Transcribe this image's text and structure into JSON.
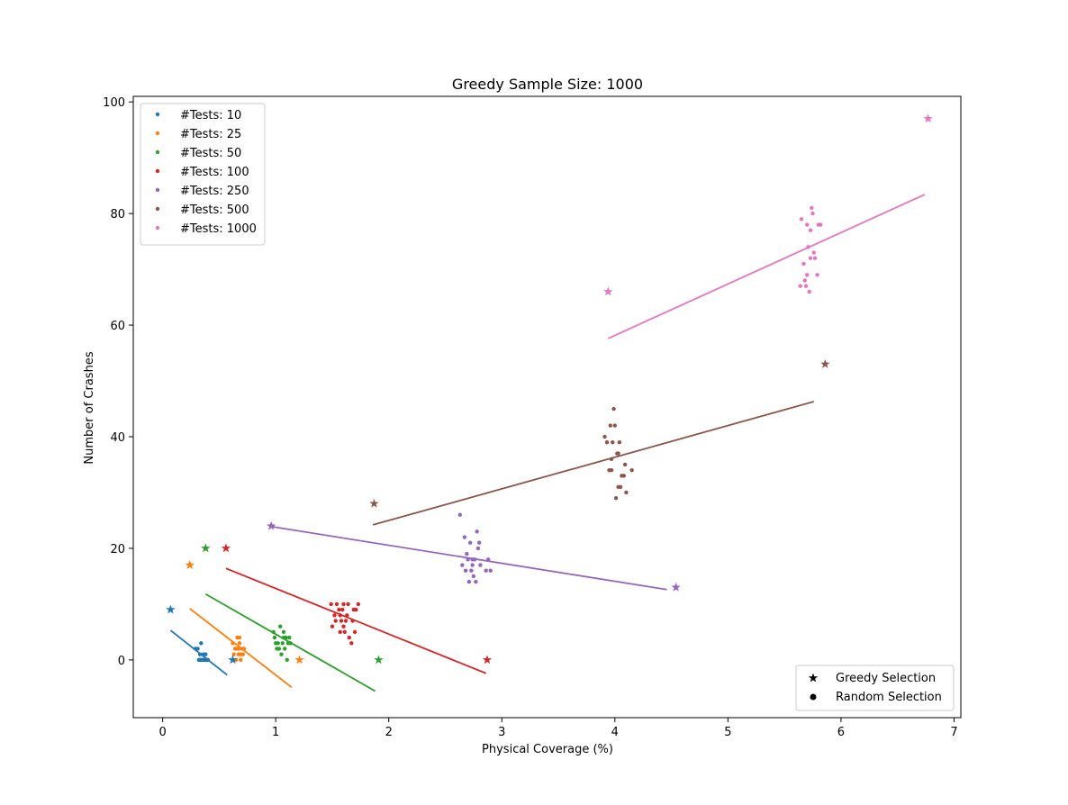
{
  "chart_data": {
    "type": "scatter",
    "title": "Greedy Sample Size: 1000",
    "xlabel": "Physical Coverage (%)",
    "ylabel": "Number of Crashes",
    "xlim": [
      -0.26,
      7.06
    ],
    "ylim": [
      -10.35,
      101.0
    ],
    "xticks": [
      0,
      1,
      2,
      3,
      4,
      5,
      6,
      7
    ],
    "yticks": [
      0,
      20,
      40,
      60,
      80,
      100
    ],
    "grid": false,
    "legend_placement": "upper left",
    "marker_legend_placement": "lower right",
    "marker_legend": [
      "Greedy Selection",
      "Random Selection"
    ],
    "series": [
      {
        "name": "#Tests: 10",
        "color": "#1f77b4",
        "greedy": [
          [
            0.07,
            9
          ],
          [
            0.62,
            0
          ]
        ],
        "random": [
          [
            0.29,
            2
          ],
          [
            0.31,
            2
          ],
          [
            0.32,
            0
          ],
          [
            0.33,
            1
          ],
          [
            0.34,
            3
          ],
          [
            0.34,
            0
          ],
          [
            0.35,
            0
          ],
          [
            0.36,
            1
          ],
          [
            0.37,
            0
          ],
          [
            0.38,
            1
          ],
          [
            0.39,
            0
          ],
          [
            0.4,
            0
          ],
          [
            0.33,
            0
          ],
          [
            0.36,
            0
          ],
          [
            0.38,
            0
          ]
        ],
        "fit": [
          [
            0.07,
            5.3
          ],
          [
            0.57,
            -2.7
          ]
        ]
      },
      {
        "name": "#Tests: 25",
        "color": "#ff7f0e",
        "greedy": [
          [
            0.24,
            17
          ],
          [
            1.21,
            0
          ]
        ],
        "random": [
          [
            0.62,
            3
          ],
          [
            0.63,
            1
          ],
          [
            0.64,
            2
          ],
          [
            0.65,
            0
          ],
          [
            0.66,
            4
          ],
          [
            0.67,
            2
          ],
          [
            0.67,
            1
          ],
          [
            0.68,
            3
          ],
          [
            0.69,
            1
          ],
          [
            0.69,
            0
          ],
          [
            0.7,
            2
          ],
          [
            0.71,
            1
          ],
          [
            0.72,
            2
          ],
          [
            0.66,
            2
          ],
          [
            0.68,
            4
          ]
        ],
        "fit": [
          [
            0.24,
            9.2
          ],
          [
            1.14,
            -4.9
          ]
        ]
      },
      {
        "name": "#Tests: 50",
        "color": "#2ca02c",
        "greedy": [
          [
            0.38,
            20
          ],
          [
            1.91,
            0
          ]
        ],
        "random": [
          [
            0.98,
            5
          ],
          [
            0.99,
            4
          ],
          [
            1.0,
            3
          ],
          [
            1.01,
            2
          ],
          [
            1.02,
            3
          ],
          [
            1.03,
            2
          ],
          [
            1.04,
            6
          ],
          [
            1.05,
            1
          ],
          [
            1.06,
            3
          ],
          [
            1.07,
            5
          ],
          [
            1.08,
            2
          ],
          [
            1.09,
            4
          ],
          [
            1.1,
            0
          ],
          [
            1.11,
            3
          ],
          [
            1.12,
            4
          ],
          [
            1.13,
            3
          ],
          [
            1.07,
            4
          ]
        ],
        "fit": [
          [
            0.38,
            11.8
          ],
          [
            1.88,
            -5.6
          ]
        ]
      },
      {
        "name": "#Tests: 100",
        "color": "#d62728",
        "greedy": [
          [
            0.56,
            20
          ],
          [
            2.87,
            0
          ]
        ],
        "random": [
          [
            1.49,
            10
          ],
          [
            1.5,
            6
          ],
          [
            1.52,
            8
          ],
          [
            1.53,
            7
          ],
          [
            1.54,
            10
          ],
          [
            1.56,
            9
          ],
          [
            1.57,
            5
          ],
          [
            1.58,
            7
          ],
          [
            1.59,
            9
          ],
          [
            1.6,
            10
          ],
          [
            1.61,
            5
          ],
          [
            1.62,
            7
          ],
          [
            1.63,
            8
          ],
          [
            1.64,
            10
          ],
          [
            1.65,
            4
          ],
          [
            1.67,
            3
          ],
          [
            1.68,
            7
          ],
          [
            1.69,
            9
          ],
          [
            1.7,
            5
          ],
          [
            1.71,
            9
          ],
          [
            1.73,
            10
          ],
          [
            1.6,
            6
          ],
          [
            1.57,
            8
          ]
        ],
        "fit": [
          [
            0.56,
            16.4
          ],
          [
            2.86,
            -2.4
          ]
        ]
      },
      {
        "name": "#Tests: 250",
        "color": "#9467bd",
        "greedy": [
          [
            0.96,
            24
          ],
          [
            4.54,
            13
          ]
        ],
        "random": [
          [
            2.63,
            26
          ],
          [
            2.65,
            17
          ],
          [
            2.67,
            22
          ],
          [
            2.68,
            16
          ],
          [
            2.69,
            19
          ],
          [
            2.7,
            18
          ],
          [
            2.71,
            14
          ],
          [
            2.72,
            21
          ],
          [
            2.73,
            16
          ],
          [
            2.74,
            17
          ],
          [
            2.75,
            15
          ],
          [
            2.76,
            18
          ],
          [
            2.77,
            14
          ],
          [
            2.78,
            23
          ],
          [
            2.79,
            20
          ],
          [
            2.8,
            21
          ],
          [
            2.81,
            17
          ],
          [
            2.86,
            16
          ],
          [
            2.88,
            18
          ],
          [
            2.9,
            16
          ],
          [
            2.74,
            18
          ]
        ],
        "fit": [
          [
            0.96,
            23.9
          ],
          [
            4.46,
            12.6
          ]
        ]
      },
      {
        "name": "#Tests: 500",
        "color": "#8c564b",
        "greedy": [
          [
            1.87,
            28
          ],
          [
            5.86,
            53
          ]
        ],
        "random": [
          [
            3.91,
            40
          ],
          [
            3.93,
            39
          ],
          [
            3.95,
            34
          ],
          [
            3.96,
            42
          ],
          [
            3.97,
            36
          ],
          [
            3.98,
            39
          ],
          [
            3.99,
            45
          ],
          [
            4.0,
            42
          ],
          [
            4.01,
            29
          ],
          [
            4.02,
            37
          ],
          [
            4.03,
            31
          ],
          [
            4.04,
            39
          ],
          [
            4.05,
            31
          ],
          [
            4.06,
            33
          ],
          [
            4.08,
            33
          ],
          [
            4.09,
            35
          ],
          [
            4.1,
            30
          ],
          [
            4.15,
            34
          ],
          [
            3.97,
            34
          ],
          [
            4.03,
            37
          ]
        ],
        "fit": [
          [
            1.86,
            24.2
          ],
          [
            5.76,
            46.3
          ]
        ]
      },
      {
        "name": "#Tests: 1000",
        "color": "#e377c2",
        "greedy": [
          [
            3.94,
            66
          ],
          [
            6.77,
            97
          ]
        ],
        "random": [
          [
            5.64,
            67
          ],
          [
            5.65,
            79
          ],
          [
            5.67,
            71
          ],
          [
            5.68,
            68
          ],
          [
            5.69,
            67
          ],
          [
            5.7,
            78
          ],
          [
            5.71,
            74
          ],
          [
            5.72,
            66
          ],
          [
            5.73,
            72
          ],
          [
            5.74,
            81
          ],
          [
            5.75,
            80
          ],
          [
            5.76,
            73
          ],
          [
            5.77,
            72
          ],
          [
            5.79,
            69
          ],
          [
            5.8,
            78
          ],
          [
            5.82,
            78
          ],
          [
            5.7,
            69
          ],
          [
            5.73,
            77
          ]
        ],
        "fit": [
          [
            3.94,
            57.6
          ],
          [
            6.74,
            83.4
          ]
        ]
      }
    ]
  }
}
